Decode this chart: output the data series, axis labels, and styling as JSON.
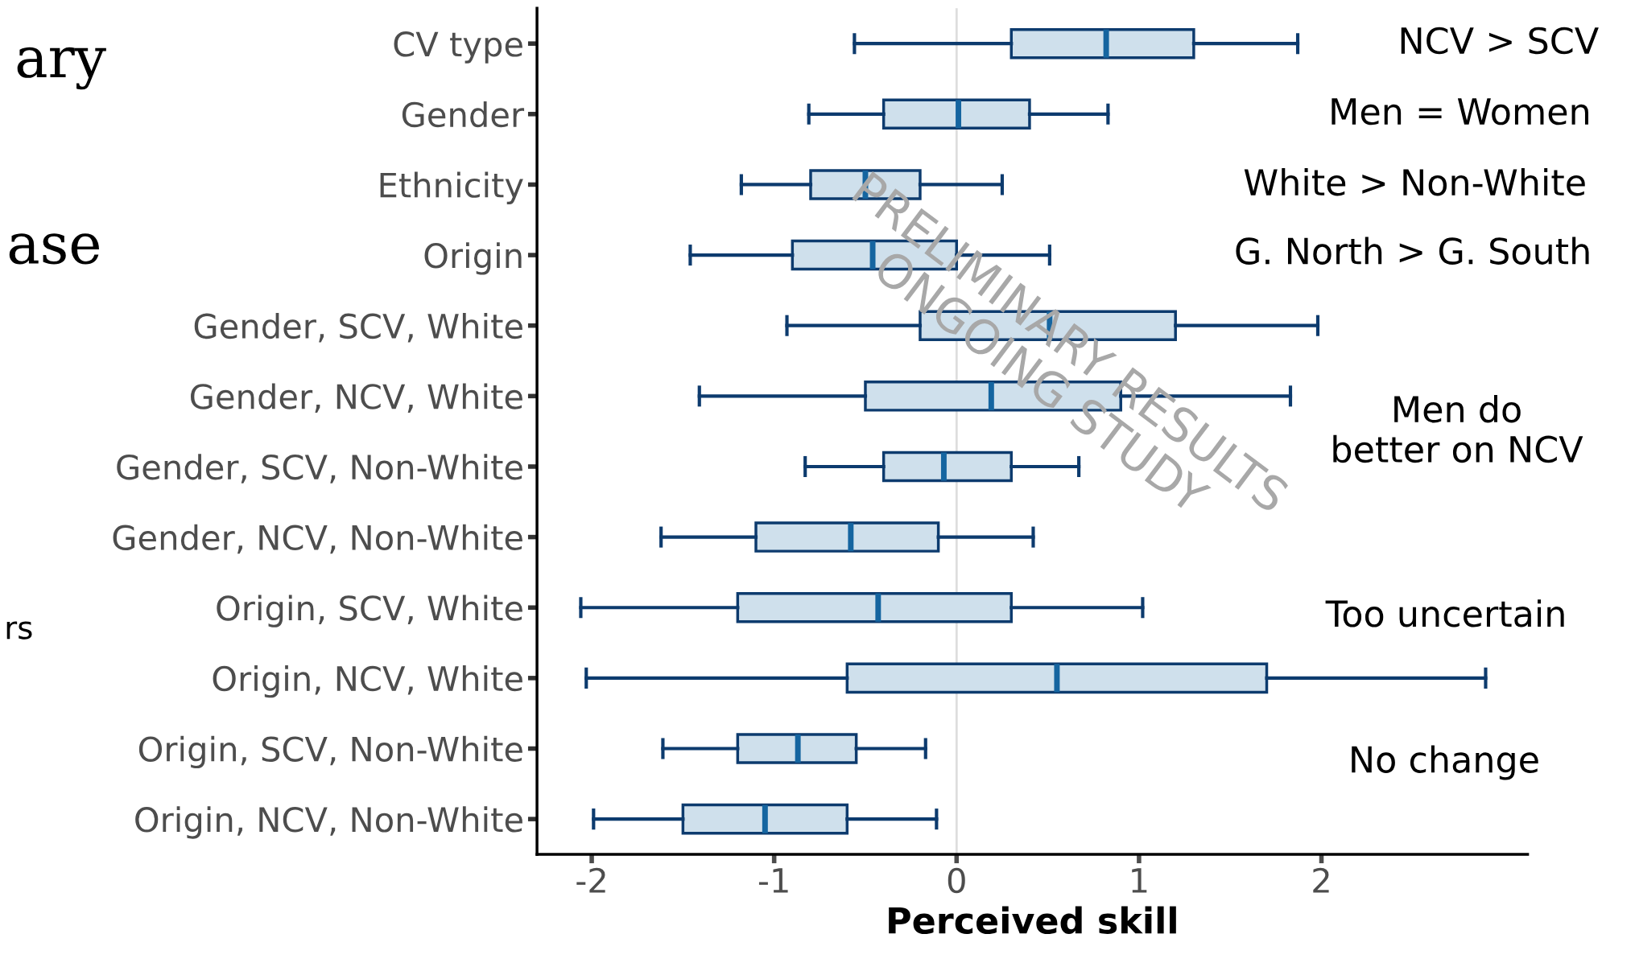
{
  "chart_data": {
    "type": "box",
    "orientation": "horizontal",
    "xlabel": "Perceived skill",
    "categories": [
      "CV type",
      "Gender",
      "Ethnicity",
      "Origin",
      "Gender, SCV, White",
      "Gender, NCV, White",
      "Gender, SCV, Non-White",
      "Gender, NCV, Non-White",
      "Origin, SCV, White",
      "Origin, NCV, White",
      "Origin, SCV, Non-White",
      "Origin, NCV, Non-White"
    ],
    "boxes": [
      {
        "low": -0.56,
        "q1": 0.3,
        "median": 0.82,
        "q3": 1.3,
        "high": 1.87
      },
      {
        "low": -0.81,
        "q1": -0.4,
        "median": 0.01,
        "q3": 0.4,
        "high": 0.83
      },
      {
        "low": -1.18,
        "q1": -0.8,
        "median": -0.5,
        "q3": -0.2,
        "high": 0.25
      },
      {
        "low": -1.46,
        "q1": -0.9,
        "median": -0.46,
        "q3": 0.0,
        "high": 0.51
      },
      {
        "low": -0.93,
        "q1": -0.2,
        "median": 0.51,
        "q3": 1.2,
        "high": 1.98
      },
      {
        "low": -1.41,
        "q1": -0.5,
        "median": 0.19,
        "q3": 0.9,
        "high": 1.83
      },
      {
        "low": -0.83,
        "q1": -0.4,
        "median": -0.07,
        "q3": 0.3,
        "high": 0.67
      },
      {
        "low": -1.62,
        "q1": -1.1,
        "median": -0.58,
        "q3": -0.1,
        "high": 0.42
      },
      {
        "low": -2.06,
        "q1": -1.2,
        "median": -0.43,
        "q3": 0.3,
        "high": 1.02
      },
      {
        "low": -2.03,
        "q1": -0.6,
        "median": 0.55,
        "q3": 1.7,
        "high": 2.9
      },
      {
        "low": -1.61,
        "q1": -1.2,
        "median": -0.87,
        "q3": -0.55,
        "high": -0.17
      },
      {
        "low": -1.99,
        "q1": -1.5,
        "median": -1.05,
        "q3": -0.6,
        "high": -0.11
      }
    ],
    "color": "#0d3b6e",
    "xlim": [
      -2.3,
      3.13
    ],
    "xticks": [
      -2,
      -1,
      0,
      1,
      2
    ],
    "ref_lines": [
      {
        "axis": "x",
        "value": 0,
        "color": "#dddddd"
      }
    ],
    "grid": false,
    "legend": false,
    "annotations": [
      "NCV > SCV",
      "Men = Women",
      "White > Non-White",
      "G. North > G. South",
      "Men do\nbetter on NCV",
      "Too uncertain",
      "No change",
      "PRELIMINARY RESULTS\nONGOING STUDY",
      "ary",
      "ase",
      "rs"
    ]
  }
}
